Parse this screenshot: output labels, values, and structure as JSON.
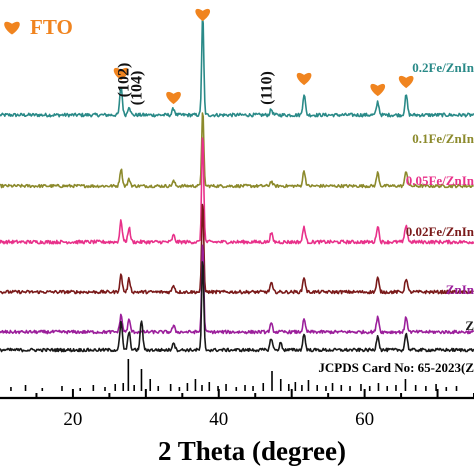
{
  "chart_data": {
    "type": "line",
    "xlabel": "2 Theta (degree)",
    "xlim": [
      10,
      75
    ],
    "x_ticks": [
      20,
      40,
      60
    ],
    "x_tick_labels": [
      "20",
      "40",
      "60"
    ],
    "legend": {
      "marker": "heart",
      "color": "#f0841f",
      "label": "FTO",
      "placement": "top-left"
    },
    "fto_peak_positions": [
      26.6,
      37.8,
      33.8,
      51.7,
      61.8,
      65.7
    ],
    "plane_labels": [
      {
        "label": "(102)",
        "x": 27.6
      },
      {
        "label": "(104)",
        "x": 29.4
      },
      {
        "label": "(110)",
        "x": 47.2
      }
    ],
    "series": [
      {
        "name": "0.2Fe/ZnIn",
        "color": "#2a8a88",
        "peaks": [
          [
            26.6,
            26
          ],
          [
            27.7,
            8
          ],
          [
            33.8,
            6
          ],
          [
            37.8,
            92
          ],
          [
            47.2,
            5
          ],
          [
            51.7,
            19
          ],
          [
            61.8,
            12
          ],
          [
            65.7,
            18
          ]
        ]
      },
      {
        "name": "0.1Fe/ZnIn",
        "color": "#8c8a2c",
        "peaks": [
          [
            26.6,
            18
          ],
          [
            27.7,
            7
          ],
          [
            33.8,
            5
          ],
          [
            37.8,
            80
          ],
          [
            47.2,
            5
          ],
          [
            51.7,
            16
          ],
          [
            61.8,
            14
          ],
          [
            65.7,
            16
          ]
        ]
      },
      {
        "name": "0.05Fe/ZnIn",
        "color": "#e8318a",
        "peaks": [
          [
            26.6,
            19
          ],
          [
            27.7,
            13
          ],
          [
            33.8,
            6
          ],
          [
            37.8,
            100
          ],
          [
            47.2,
            8
          ],
          [
            51.7,
            14
          ],
          [
            61.8,
            15
          ],
          [
            65.7,
            16
          ]
        ]
      },
      {
        "name": "0.02Fe/ZnIn",
        "color": "#7a1a1a",
        "peaks": [
          [
            26.6,
            17
          ],
          [
            27.7,
            13
          ],
          [
            33.8,
            7
          ],
          [
            37.8,
            92
          ],
          [
            47.2,
            9
          ],
          [
            51.7,
            15
          ],
          [
            61.8,
            14
          ],
          [
            65.7,
            14
          ]
        ]
      },
      {
        "name": "ZnIn",
        "color": "#9b1f9b",
        "peaks": [
          [
            26.6,
            17
          ],
          [
            27.7,
            12
          ],
          [
            33.8,
            6
          ],
          [
            37.8,
            90
          ],
          [
            47.2,
            8
          ],
          [
            51.7,
            12
          ],
          [
            61.8,
            16
          ],
          [
            65.7,
            15
          ]
        ]
      },
      {
        "name": "Z",
        "color": "#1a1a1a",
        "peaks": [
          [
            26.6,
            28
          ],
          [
            27.7,
            18
          ],
          [
            29.4,
            30
          ],
          [
            33.8,
            8
          ],
          [
            37.8,
            92
          ],
          [
            47.2,
            12
          ],
          [
            48.5,
            7
          ],
          [
            51.7,
            16
          ],
          [
            61.8,
            15
          ],
          [
            65.7,
            17
          ]
        ]
      }
    ],
    "reference": {
      "label": "JCPDS Card No: 65-2023(Z",
      "color": "#000000",
      "lines": [
        [
          11.5,
          4
        ],
        [
          13.5,
          6
        ],
        [
          15.8,
          3
        ],
        [
          18.5,
          5
        ],
        [
          21.0,
          3
        ],
        [
          22.8,
          6
        ],
        [
          24.4,
          4
        ],
        [
          25.8,
          7
        ],
        [
          26.9,
          8
        ],
        [
          27.6,
          32
        ],
        [
          28.4,
          6
        ],
        [
          29.4,
          22
        ],
        [
          30.6,
          12
        ],
        [
          31.7,
          5
        ],
        [
          33.4,
          7
        ],
        [
          34.6,
          4
        ],
        [
          35.7,
          8
        ],
        [
          36.8,
          12
        ],
        [
          37.7,
          6
        ],
        [
          38.7,
          9
        ],
        [
          39.9,
          5
        ],
        [
          41.0,
          7
        ],
        [
          42.4,
          4
        ],
        [
          43.6,
          6
        ],
        [
          44.7,
          5
        ],
        [
          46.1,
          8
        ],
        [
          47.3,
          20
        ],
        [
          48.5,
          12
        ],
        [
          49.6,
          7
        ],
        [
          50.5,
          9
        ],
        [
          51.4,
          6
        ],
        [
          52.3,
          11
        ],
        [
          53.5,
          6
        ],
        [
          54.7,
          5
        ],
        [
          55.6,
          8
        ],
        [
          56.8,
          6
        ],
        [
          58.0,
          5
        ],
        [
          59.5,
          7
        ],
        [
          60.7,
          5
        ],
        [
          61.9,
          8
        ],
        [
          63.1,
          5
        ],
        [
          64.3,
          6
        ],
        [
          65.6,
          12
        ],
        [
          67.0,
          6
        ],
        [
          68.4,
          5
        ],
        [
          69.8,
          7
        ],
        [
          71.2,
          4
        ],
        [
          72.6,
          5
        ]
      ]
    }
  }
}
